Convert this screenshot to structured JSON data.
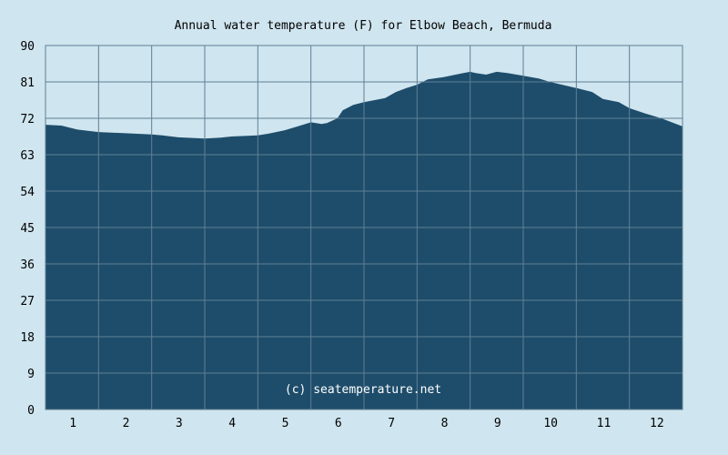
{
  "chart_data": {
    "type": "area",
    "title": "Annual water temperature (F) for Elbow Beach, Bermuda",
    "watermark": "(c) seatemperature.net",
    "xlabel": "",
    "ylabel": "",
    "x_tick_labels": [
      "1",
      "2",
      "3",
      "4",
      "5",
      "6",
      "7",
      "8",
      "9",
      "10",
      "11",
      "12"
    ],
    "y_tick_labels": [
      "0",
      "9",
      "18",
      "27",
      "36",
      "45",
      "54",
      "63",
      "72",
      "81",
      "90"
    ],
    "ylim": [
      0,
      90
    ],
    "xlim": [
      0,
      12
    ],
    "grid": true,
    "colors": {
      "background": "#cfe5ef",
      "fill": "#1e4d6b",
      "grid": "#5f7f96"
    },
    "series": [
      {
        "x": [
          0,
          0.3,
          0.6,
          1.0,
          1.5,
          2.0,
          2.2,
          2.5,
          3.0,
          3.3,
          3.5,
          4.0,
          4.2,
          4.5,
          4.8,
          5.0,
          5.2,
          5.3,
          5.5,
          5.6,
          5.8,
          6.0,
          6.2,
          6.4,
          6.6,
          6.8,
          7.0,
          7.2,
          7.5,
          7.8,
          8.0,
          8.1,
          8.3,
          8.5,
          8.7,
          9.0,
          9.3,
          9.5,
          10.0,
          10.3,
          10.5,
          10.8,
          11.0,
          11.3,
          11.6,
          12.0
        ],
        "values": [
          70.4,
          70.2,
          69.2,
          68.6,
          68.3,
          68.0,
          67.8,
          67.3,
          67.0,
          67.2,
          67.5,
          67.8,
          68.2,
          69.0,
          70.2,
          71.0,
          70.6,
          70.8,
          72.0,
          74.0,
          75.3,
          76.0,
          76.5,
          77.0,
          78.5,
          79.5,
          80.3,
          81.6,
          82.2,
          83.0,
          83.5,
          83.2,
          82.8,
          83.5,
          83.2,
          82.5,
          81.8,
          81.0,
          79.5,
          78.5,
          76.8,
          76.0,
          74.5,
          73.2,
          72.0,
          70.0
        ]
      }
    ]
  }
}
